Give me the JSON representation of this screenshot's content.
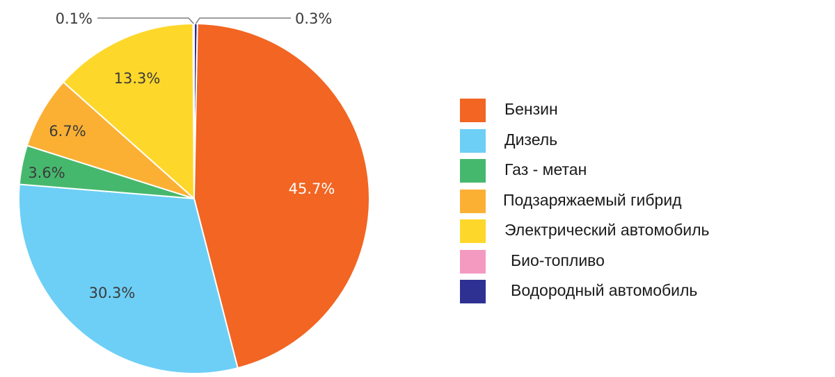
{
  "chart_data": {
    "type": "pie",
    "title": "",
    "slices": [
      {
        "label": "Бензин",
        "value": 45.7,
        "value_label": "45.7%",
        "color": "#f26522"
      },
      {
        "label": "Дизель",
        "value": 30.3,
        "value_label": "30.3%",
        "color": "#6dcff6"
      },
      {
        "label": "Газ - метан",
        "value": 3.6,
        "value_label": "3.6%",
        "color": "#46b86d"
      },
      {
        "label": "Подзаряжаемый гибрид",
        "value": 6.7,
        "value_label": "6.7%",
        "color": "#fbb034"
      },
      {
        "label": "Электрический автомобиль",
        "value": 13.3,
        "value_label": "13.3%",
        "color": "#fed72b"
      },
      {
        "label": "Био-топливо",
        "value": 0.1,
        "value_label": "0.1%",
        "color": "#f49ac1"
      },
      {
        "label": "Водородный автомобиль",
        "value": 0.3,
        "value_label": "0.3%",
        "color": "#2e3192"
      }
    ],
    "legend_position": "right"
  }
}
